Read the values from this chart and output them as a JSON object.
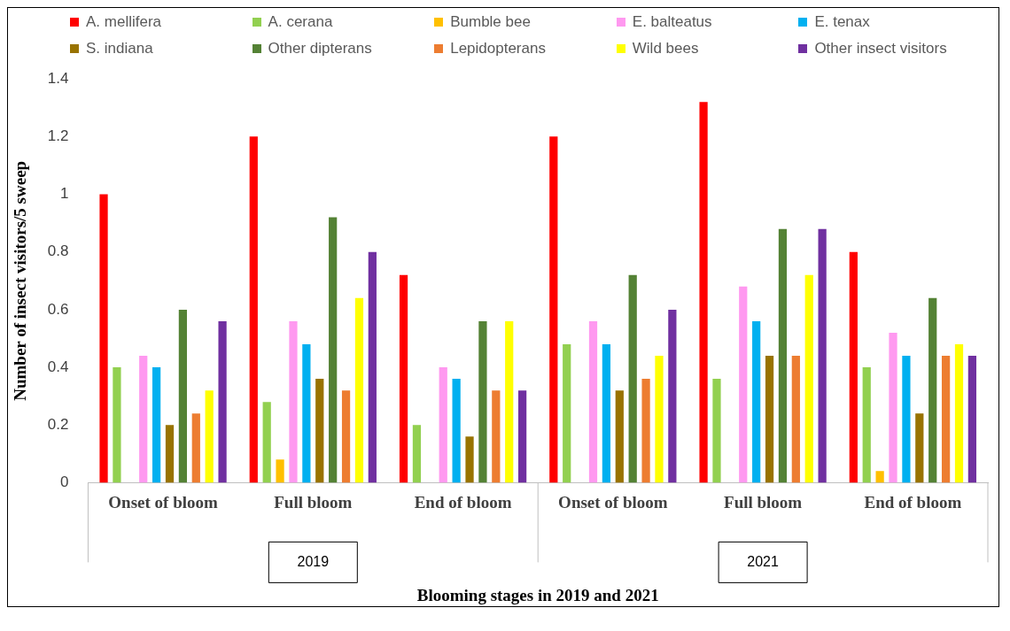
{
  "chart_data": {
    "type": "bar",
    "xlabel": "Blooming stages in 2019 and 2021",
    "ylabel": "Number of insect visitors/5 sweep",
    "categories": [
      "Onset of bloom",
      "Full bloom",
      "End of bloom",
      "Onset of bloom",
      "Full bloom",
      "End of bloom"
    ],
    "series": [
      {
        "name": "A. mellifera",
        "color": "#ff0000",
        "values": [
          1.0,
          1.2,
          0.72,
          1.2,
          1.32,
          0.8
        ]
      },
      {
        "name": "A. cerana",
        "color": "#92d050",
        "values": [
          0.4,
          0.28,
          0.2,
          0.48,
          0.36,
          0.4
        ]
      },
      {
        "name": "Bumble bee",
        "color": "#ffc000",
        "values": [
          0,
          0.08,
          0,
          0,
          0,
          0.04
        ]
      },
      {
        "name": "E. balteatus",
        "color": "#ff99f0",
        "values": [
          0.44,
          0.56,
          0.4,
          0.56,
          0.68,
          0.52
        ]
      },
      {
        "name": "E. tenax",
        "color": "#00b0f0",
        "values": [
          0.4,
          0.48,
          0.36,
          0.48,
          0.56,
          0.44
        ]
      },
      {
        "name": "S. indiana",
        "color": "#997300",
        "values": [
          0.2,
          0.36,
          0.16,
          0.32,
          0.44,
          0.24
        ]
      },
      {
        "name": "Other dipterans",
        "color": "#548235",
        "values": [
          0.6,
          0.92,
          0.56,
          0.72,
          0.88,
          0.64
        ]
      },
      {
        "name": "Lepidopterans",
        "color": "#ed7d31",
        "values": [
          0.24,
          0.32,
          0.32,
          0.36,
          0.44,
          0.44
        ]
      },
      {
        "name": "Wild bees",
        "color": "#ffff00",
        "values": [
          0.32,
          0.64,
          0.56,
          0.44,
          0.72,
          0.48
        ]
      },
      {
        "name": "Other insect visitors",
        "color": "#7030a0",
        "values": [
          0.56,
          0.8,
          0.32,
          0.6,
          0.88,
          0.44
        ]
      }
    ],
    "ylim": [
      0,
      1.4
    ],
    "yticks": [
      0,
      0.2,
      0.4,
      0.6,
      0.8,
      1,
      1.2,
      1.4
    ],
    "grid": false,
    "legend": "top",
    "annotations": [
      "2019",
      "2021"
    ]
  }
}
